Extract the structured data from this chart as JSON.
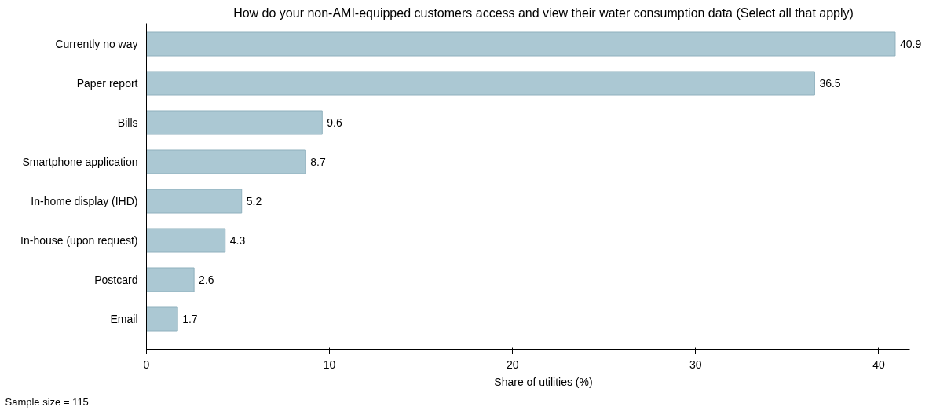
{
  "chart_data": {
    "type": "bar",
    "orientation": "horizontal",
    "title": "How do your non-AMI-equipped customers access and view their water consumption data (Select all that apply)",
    "categories": [
      "Currently no way",
      "Paper report",
      "Bills",
      "Smartphone application",
      "In-home display (IHD)",
      "In-house (upon request)",
      "Postcard",
      "Email"
    ],
    "values": [
      40.9,
      36.5,
      9.6,
      8.7,
      5.2,
      4.3,
      2.6,
      1.7
    ],
    "color": "#abc8d3",
    "xlim": [
      0,
      41.7
    ],
    "xticks": [
      0,
      10,
      20,
      30,
      40
    ],
    "xlabel": "Share of utilities (%)",
    "data_labels": true,
    "grid": false,
    "annotations": [
      "Sample size = 115"
    ]
  }
}
